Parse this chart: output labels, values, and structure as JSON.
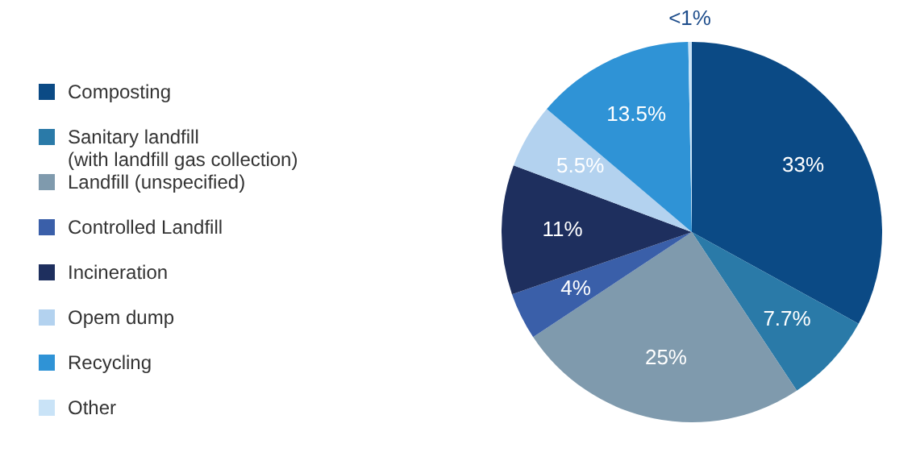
{
  "chart_data": {
    "type": "pie",
    "categories": [
      "Composting",
      "Sanitary landfill\n(with landfill gas collection)",
      "Landfill (unspecified)",
      "Controlled Landfill",
      "Incineration",
      "Opem dump",
      "Recycling",
      "Other"
    ],
    "values": [
      33,
      7.7,
      25,
      4,
      11,
      5.5,
      13.5,
      0.3
    ],
    "colors": [
      "#0b4a85",
      "#2a7aa8",
      "#7f9aad",
      "#3a5fa9",
      "#1e2f5e",
      "#b3d2ef",
      "#2f93d6",
      "#c9e3f7"
    ],
    "value_labels": [
      "33%",
      "7.7%",
      "25%",
      "4%",
      "11%",
      "5.5%",
      "13.5%",
      "<1%"
    ],
    "legend": "left"
  }
}
